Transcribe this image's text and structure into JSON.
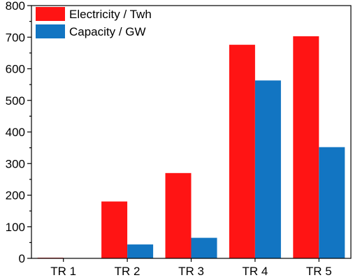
{
  "chart_data": {
    "type": "bar",
    "categories": [
      "TR 1",
      "TR 2",
      "TR 3",
      "TR 4",
      "TR 5"
    ],
    "series": [
      {
        "name": "Electricity / Twh",
        "color": "#ff1414",
        "values": [
          2,
          180,
          270,
          676,
          703
        ]
      },
      {
        "name": "Capacity / GW",
        "color": "#1275c2",
        "values": [
          1,
          44,
          65,
          563,
          352
        ]
      }
    ],
    "title": "",
    "xlabel": "",
    "ylabel": "",
    "ylim": [
      0,
      800
    ],
    "yticks": [
      "0",
      "100",
      "200",
      "300",
      "400",
      "500",
      "600",
      "700",
      "800"
    ],
    "grid": false,
    "legend_position": "top-left"
  }
}
